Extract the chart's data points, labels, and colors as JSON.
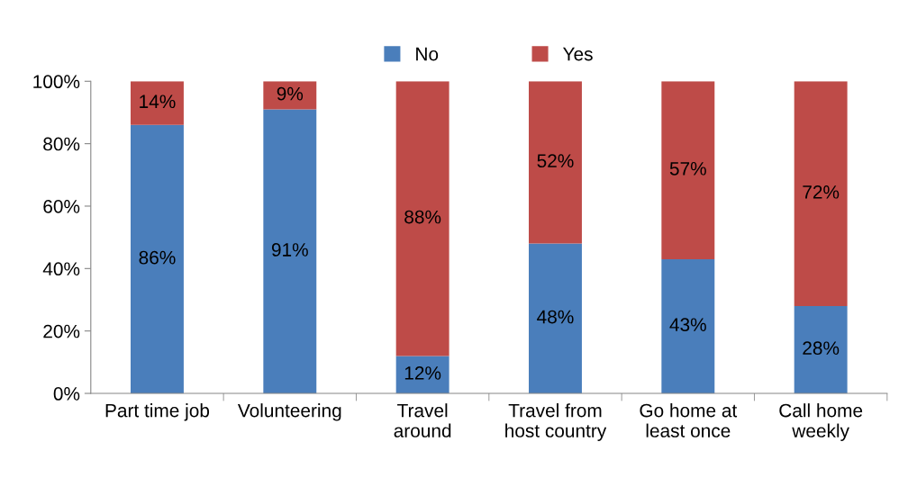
{
  "chart_data": {
    "type": "bar",
    "stacked": true,
    "categories": [
      "Part time job",
      "Volunteering",
      "Travel\naround",
      "Travel from\nhost country",
      "Go home at\nleast once",
      "Call home\nweekly"
    ],
    "series": [
      {
        "name": "No",
        "color": "#4a7ebb",
        "values": [
          86,
          91,
          12,
          48,
          43,
          28
        ],
        "value_labels": [
          "86%",
          "91%",
          "12%",
          "48%",
          "43%",
          "28%"
        ]
      },
      {
        "name": "Yes",
        "color": "#be4b48",
        "values": [
          14,
          9,
          88,
          52,
          57,
          72
        ],
        "value_labels": [
          "14%",
          "9%",
          "88%",
          "52%",
          "57%",
          "72%"
        ]
      }
    ],
    "ylim": [
      0,
      100
    ],
    "yticks": [
      {
        "value": 0,
        "label": "0%"
      },
      {
        "value": 20,
        "label": "20%"
      },
      {
        "value": 40,
        "label": "40%"
      },
      {
        "value": 60,
        "label": "60%"
      },
      {
        "value": 80,
        "label": "80%"
      },
      {
        "value": 100,
        "label": "100%"
      }
    ],
    "grid": false,
    "legend": "top"
  }
}
